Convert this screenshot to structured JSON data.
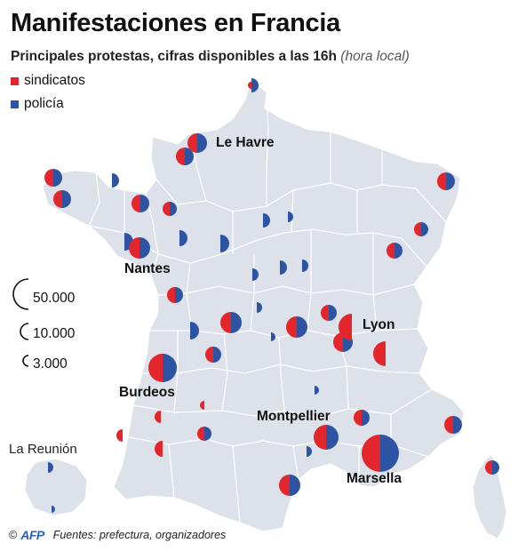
{
  "header": {
    "title": "Manifestaciones en Francia",
    "subtitle": "Principales protestas, cifras disponibles a las 16h",
    "subtitle_note": "(hora local)"
  },
  "legend": {
    "items": [
      {
        "label": "sindicatos",
        "color": "#e3262b"
      },
      {
        "label": "policía",
        "color": "#2d54a3"
      }
    ],
    "size_scale": [
      {
        "label": "50.000",
        "value": 50000
      },
      {
        "label": "10.000",
        "value": 10000
      },
      {
        "label": "3.000",
        "value": 3000
      }
    ]
  },
  "map": {
    "land_color": "#dde2ea",
    "border_color": "#ffffff",
    "cities": [
      "Le Havre",
      "Nantes",
      "Lyon",
      "Burdeos",
      "Montpellier",
      "Marsella"
    ],
    "inset_label": "La Reunión"
  },
  "footer": {
    "copyright": "©",
    "agency": "AFP",
    "sources": "Fuentes: prefectura, organizadores"
  }
}
